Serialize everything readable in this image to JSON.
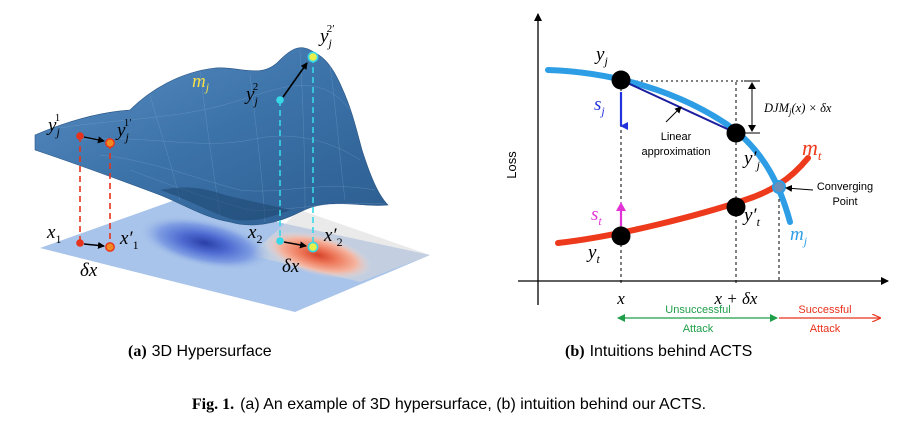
{
  "panel_a": {
    "label_bold": "(a)",
    "label_text": "3D Hypersurface",
    "surface_label": "m",
    "surface_label_sub": "j",
    "y1_label": "y",
    "y1_sub": "j",
    "y1_sup": "1",
    "y1p_label": "y",
    "y1p_sub": "j",
    "y1p_sup": "1′",
    "y2_label": "y",
    "y2_sub": "j",
    "y2_sup": "2",
    "y2p_label": "y",
    "y2p_sub": "j",
    "y2p_sup": "2′",
    "x1_label": "x",
    "x1_sub": "1",
    "x1p_label": "x′",
    "x1p_sub": "1",
    "x2_label": "x",
    "x2_sub": "2",
    "x2p_label": "x′",
    "x2p_sub": "2",
    "dx1_label": "δx",
    "dx2_label": "δx"
  },
  "panel_b": {
    "label_bold": "(b)",
    "label_text": "Intuitions behind ACTS",
    "ylabel": "Loss",
    "yj_label": "y",
    "yj_sub": "j",
    "sj_label": "s",
    "sj_sub": "j",
    "linear_approx_line1": "Linear",
    "linear_approx_line2": "approximation",
    "yjp_label": "y′",
    "yjp_sub": "j",
    "djm_label": "DJM",
    "djm_sub": "j",
    "djm_rest": "(x) × δx",
    "mt_label": "m",
    "mt_sub": "t",
    "mj_label": "m",
    "mj_sub": "j",
    "converging_line1": "Converging",
    "converging_line2": "Point",
    "st_label": "s",
    "st_sub": "t",
    "ytp_label": "y′",
    "ytp_sub": "t",
    "yt_label": "y",
    "yt_sub": "t",
    "x_tick": "x",
    "x_dx_tick": "x + δx",
    "unsuccessful_line1": "Unsuccessful",
    "unsuccessful_line2": "Attack",
    "successful_line1": "Successful",
    "successful_line2": "Attack"
  },
  "caption": {
    "fig_label": "Fig. 1.",
    "text": "(a) An example of 3D hypersurface, (b) intuition behind our ACTS."
  },
  "colors": {
    "surface": "#3f78ad",
    "floor": "#a7c3ea",
    "blue_curve": "#2d9ee6",
    "red_curve": "#ee3a1c",
    "green_arrow": "#1f9e4a",
    "red_arrow": "#e8321c",
    "yellow_label": "#f4e04a",
    "sj_blue": "#2233dd",
    "st_magenta": "#e233d6"
  }
}
